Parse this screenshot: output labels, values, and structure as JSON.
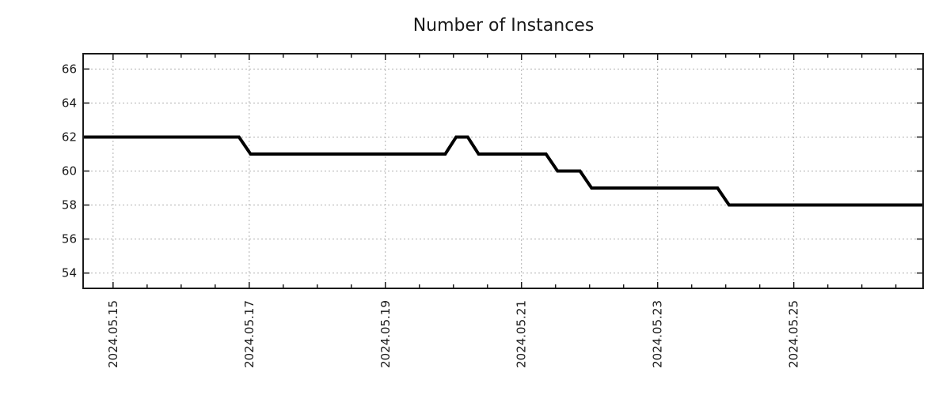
{
  "chart_data": {
    "type": "line",
    "title": "Number of Instances",
    "legend": "none",
    "x_axis": {
      "unit": "day of May 2024 (fractional = time of day)",
      "lim": [
        14.56,
        26.9
      ],
      "major_ticks": [
        {
          "day": 15,
          "label": "2024.05.15"
        },
        {
          "day": 17,
          "label": "2024.05.17"
        },
        {
          "day": 19,
          "label": "2024.05.19"
        },
        {
          "day": 21,
          "label": "2024.05.21"
        },
        {
          "day": 23,
          "label": "2024.05.23"
        },
        {
          "day": 25,
          "label": "2024.05.25"
        }
      ],
      "minor_tick_step_days": 0.5,
      "label_rotation_deg": -90
    },
    "y_axis": {
      "lim": [
        53.1,
        66.9
      ],
      "ticks": [
        54,
        56,
        58,
        60,
        62,
        64,
        66
      ]
    },
    "grid": {
      "enabled": true,
      "style": "dotted",
      "color": "#b0b0b0"
    },
    "series": [
      {
        "name": "Number of Instances",
        "color": "#000000",
        "stroke_width": 4,
        "points_day_value": [
          [
            14.56,
            62
          ],
          [
            16.85,
            62
          ],
          [
            17.02,
            61
          ],
          [
            19.88,
            61
          ],
          [
            20.04,
            62
          ],
          [
            20.21,
            62
          ],
          [
            20.37,
            61
          ],
          [
            21.36,
            61
          ],
          [
            21.53,
            60
          ],
          [
            21.86,
            60
          ],
          [
            22.03,
            59
          ],
          [
            23.88,
            59
          ],
          [
            24.05,
            58
          ],
          [
            26.9,
            58
          ]
        ]
      }
    ],
    "colors": {
      "line": "#000000",
      "plot_border": "#1a1a1a",
      "grid": "#b0b0b0",
      "text": "#1a1a1a",
      "background": "#ffffff"
    }
  }
}
